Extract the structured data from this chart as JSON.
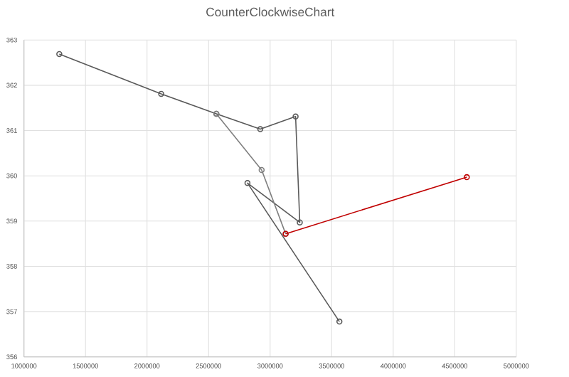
{
  "chart_data": {
    "type": "line",
    "title": "CounterClockwiseChart",
    "series": [
      {
        "color": "#595959",
        "x": [
          3563000,
          2816000,
          3241000,
          3207000,
          2920000,
          2563000,
          2115000,
          1287000
        ],
        "values": [
          356.78,
          359.84,
          358.97,
          361.31,
          361.03,
          361.37,
          361.81,
          362.69
        ]
      },
      {
        "color": "#7f7f7f",
        "x": [
          2563000,
          2931000,
          3126000
        ],
        "values": [
          361.37,
          360.13,
          358.72
        ]
      },
      {
        "color": "#c00000",
        "x": [
          3126000,
          4598000
        ],
        "values": [
          358.72,
          359.97
        ]
      }
    ],
    "xlim": [
      1000000,
      5000000
    ],
    "xticks": [
      1000000,
      1500000,
      2000000,
      2500000,
      3000000,
      3500000,
      4000000,
      4500000,
      5000000
    ],
    "ylim": [
      356,
      363
    ],
    "yticks": [
      356,
      357,
      358,
      359,
      360,
      361,
      362,
      363
    ],
    "grid": true,
    "marker": "circle",
    "line_style": "solid"
  }
}
